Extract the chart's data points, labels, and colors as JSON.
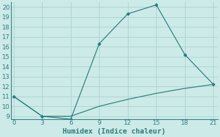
{
  "xlabel": "Humidex (Indice chaleur)",
  "line1_x": [
    0,
    3,
    6,
    9,
    12,
    15,
    18,
    21
  ],
  "line1_y": [
    11,
    9,
    8.7,
    16.3,
    19.3,
    20.2,
    15.2,
    12.2
  ],
  "line2_x": [
    0,
    3,
    6,
    9,
    12,
    15,
    18,
    21
  ],
  "line2_y": [
    11,
    9,
    9,
    10,
    10.7,
    11.3,
    11.8,
    12.2
  ],
  "line_color": "#2e7d7d",
  "bg_color": "#cceae8",
  "grid_color": "#afd4d2",
  "xlim": [
    0,
    21
  ],
  "ylim": [
    9,
    20
  ],
  "xticks": [
    0,
    3,
    6,
    9,
    12,
    15,
    18,
    21
  ],
  "yticks": [
    9,
    10,
    11,
    12,
    13,
    14,
    15,
    16,
    17,
    18,
    19,
    20
  ],
  "tick_fontsize": 6.5,
  "xlabel_fontsize": 7.5
}
